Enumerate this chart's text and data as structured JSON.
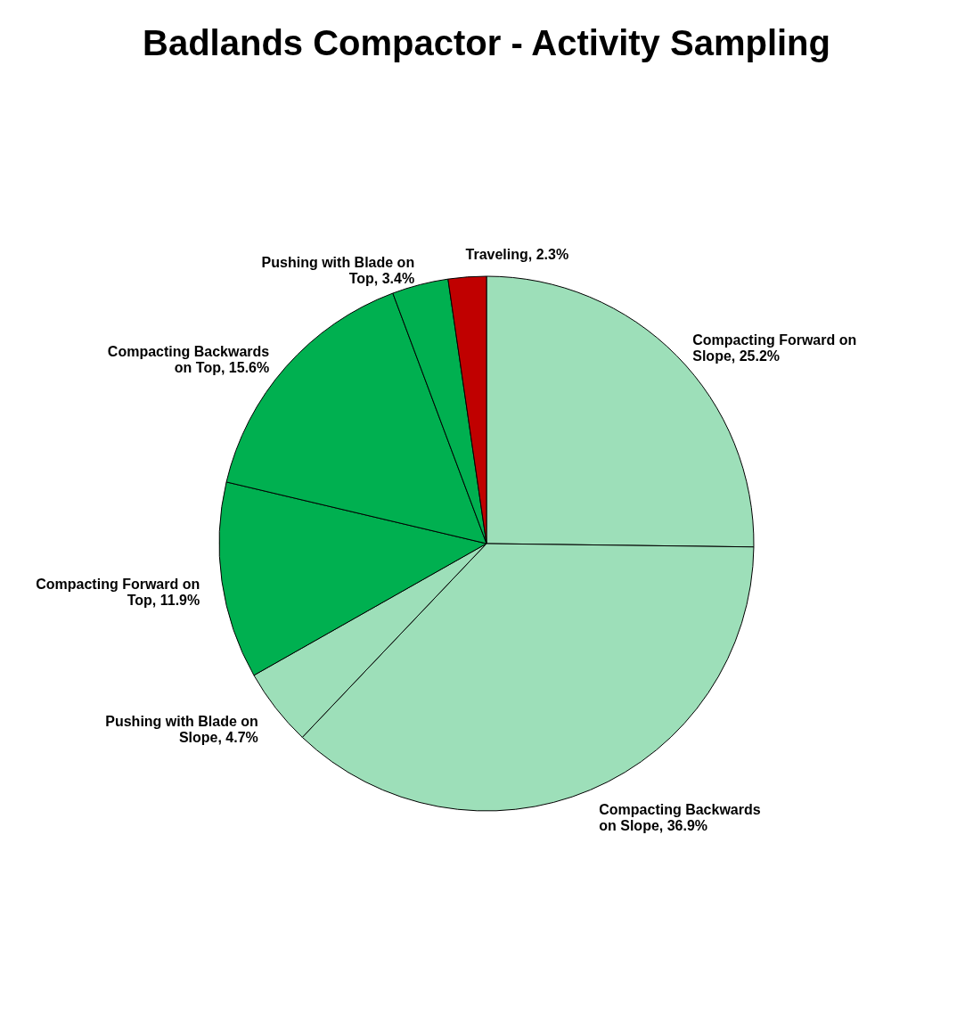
{
  "chart_data": {
    "type": "pie",
    "title": "Badlands Compactor - Activity Sampling",
    "categories": [
      "Compacting Forward on Slope",
      "Compacting Backwards on Slope",
      "Pushing with Blade on Slope",
      "Compacting Forward on Top",
      "Compacting Backwards on Top",
      "Pushing with Blade on Top",
      "Traveling"
    ],
    "values": [
      25.2,
      36.9,
      4.7,
      11.9,
      15.6,
      3.4,
      2.3
    ],
    "value_labels": [
      "25.2%",
      "36.9%",
      "4.7%",
      "11.9%",
      "15.6%",
      "3.4%",
      "2.3%"
    ],
    "colors": [
      "#9ddfb9",
      "#9ddfb9",
      "#9ddfb9",
      "#00b050",
      "#00b050",
      "#00b050",
      "#c00000"
    ]
  }
}
